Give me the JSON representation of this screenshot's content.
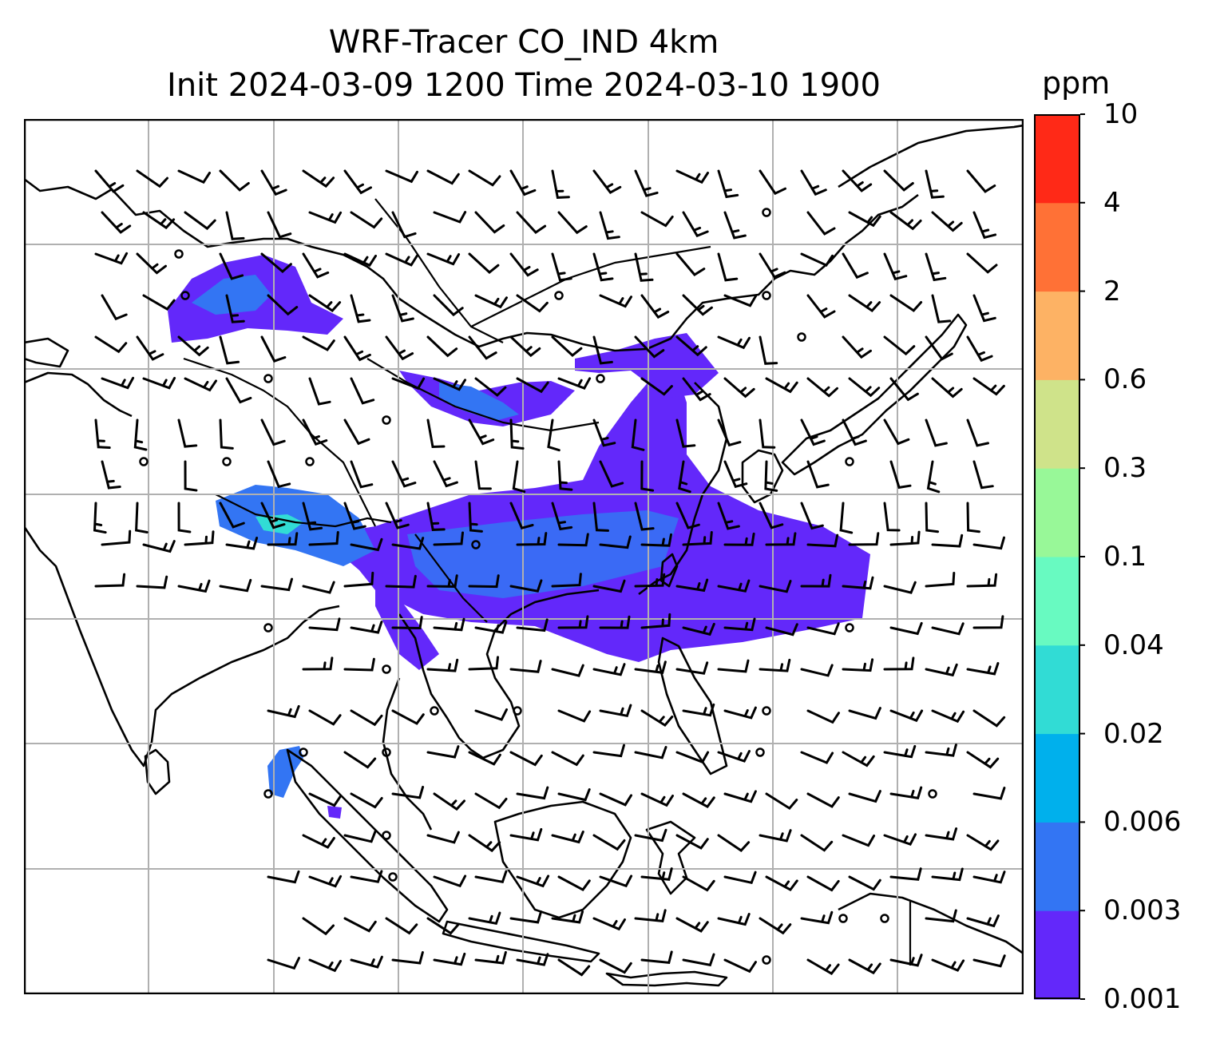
{
  "title": {
    "line1": "WRF-Tracer CO_IND 4km",
    "line2": "Init 2024-03-09 1200 Time 2024-03-10 1900"
  },
  "colorbar": {
    "unit": "ppm",
    "levels": [
      "0.001",
      "0.003",
      "0.006",
      "0.02",
      "0.04",
      "0.1",
      "0.3",
      "0.6",
      "2",
      "4",
      "10"
    ],
    "colors": [
      "#6328fa",
      "#3375f3",
      "#00b0ec",
      "#31dcd5",
      "#68fac1",
      "#98f898",
      "#cfe38a",
      "#fdb264",
      "#ff7136",
      "#ff2917"
    ]
  },
  "map": {
    "gridlines": true,
    "overlays": [
      "coastlines",
      "country-borders",
      "wind-barbs",
      "tracer-concentration-fill"
    ],
    "domain": "South and East Asia to Maritime Continent"
  }
}
